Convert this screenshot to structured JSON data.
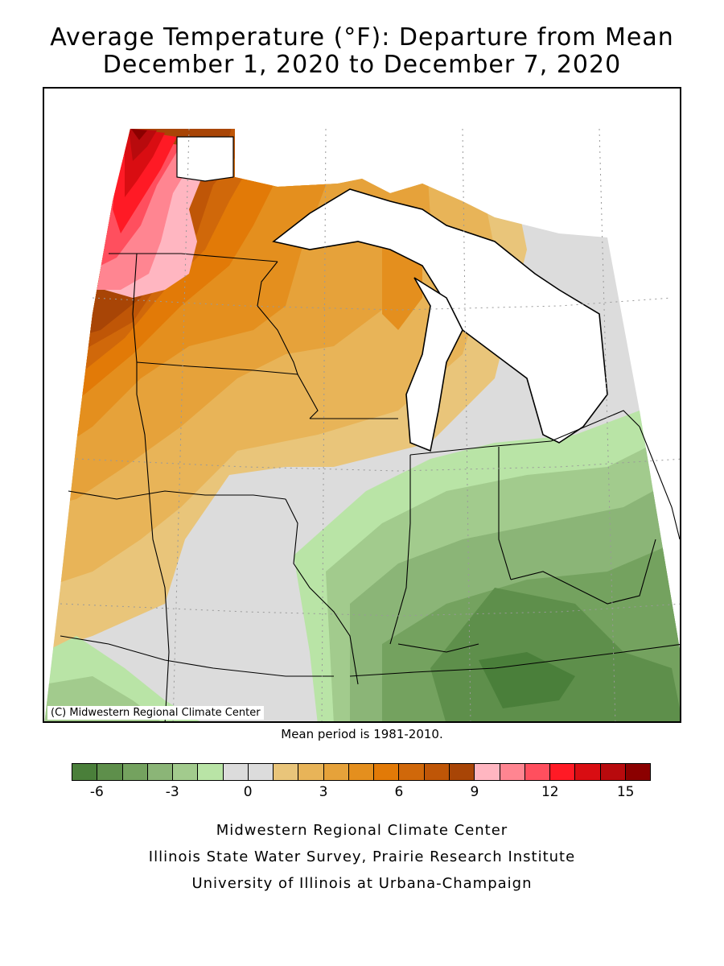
{
  "title_line1": "Average Temperature (°F): Departure from Mean",
  "title_line2": "December 1, 2020 to December 7, 2020",
  "copyright": "(C) Midwestern Regional Climate Center",
  "mean_period": "Mean period is 1981-2010.",
  "legend": {
    "colors": [
      "#4a7f3a",
      "#5e8f4b",
      "#74a25f",
      "#8bb577",
      "#a2cb8d",
      "#b9e4a6",
      "#dcdcdc",
      "#dcdcdc",
      "#e9c57a",
      "#e8b458",
      "#e6a23a",
      "#e48f1e",
      "#e27a07",
      "#d0680a",
      "#bf5607",
      "#a84506",
      "#ffb6c1",
      "#ff8591",
      "#ff4f5e",
      "#ff1a25",
      "#d90d12",
      "#b80a0d",
      "#8b0000"
    ],
    "ticks": [
      "-6",
      "-3",
      "0",
      "3",
      "6",
      "9",
      "12",
      "15"
    ]
  },
  "footer": {
    "line1": "Midwestern Regional Climate Center",
    "line2": "Illinois State Water Survey, Prairie Research Institute",
    "line3": "University of Illinois at Urbana-Champaign"
  }
}
